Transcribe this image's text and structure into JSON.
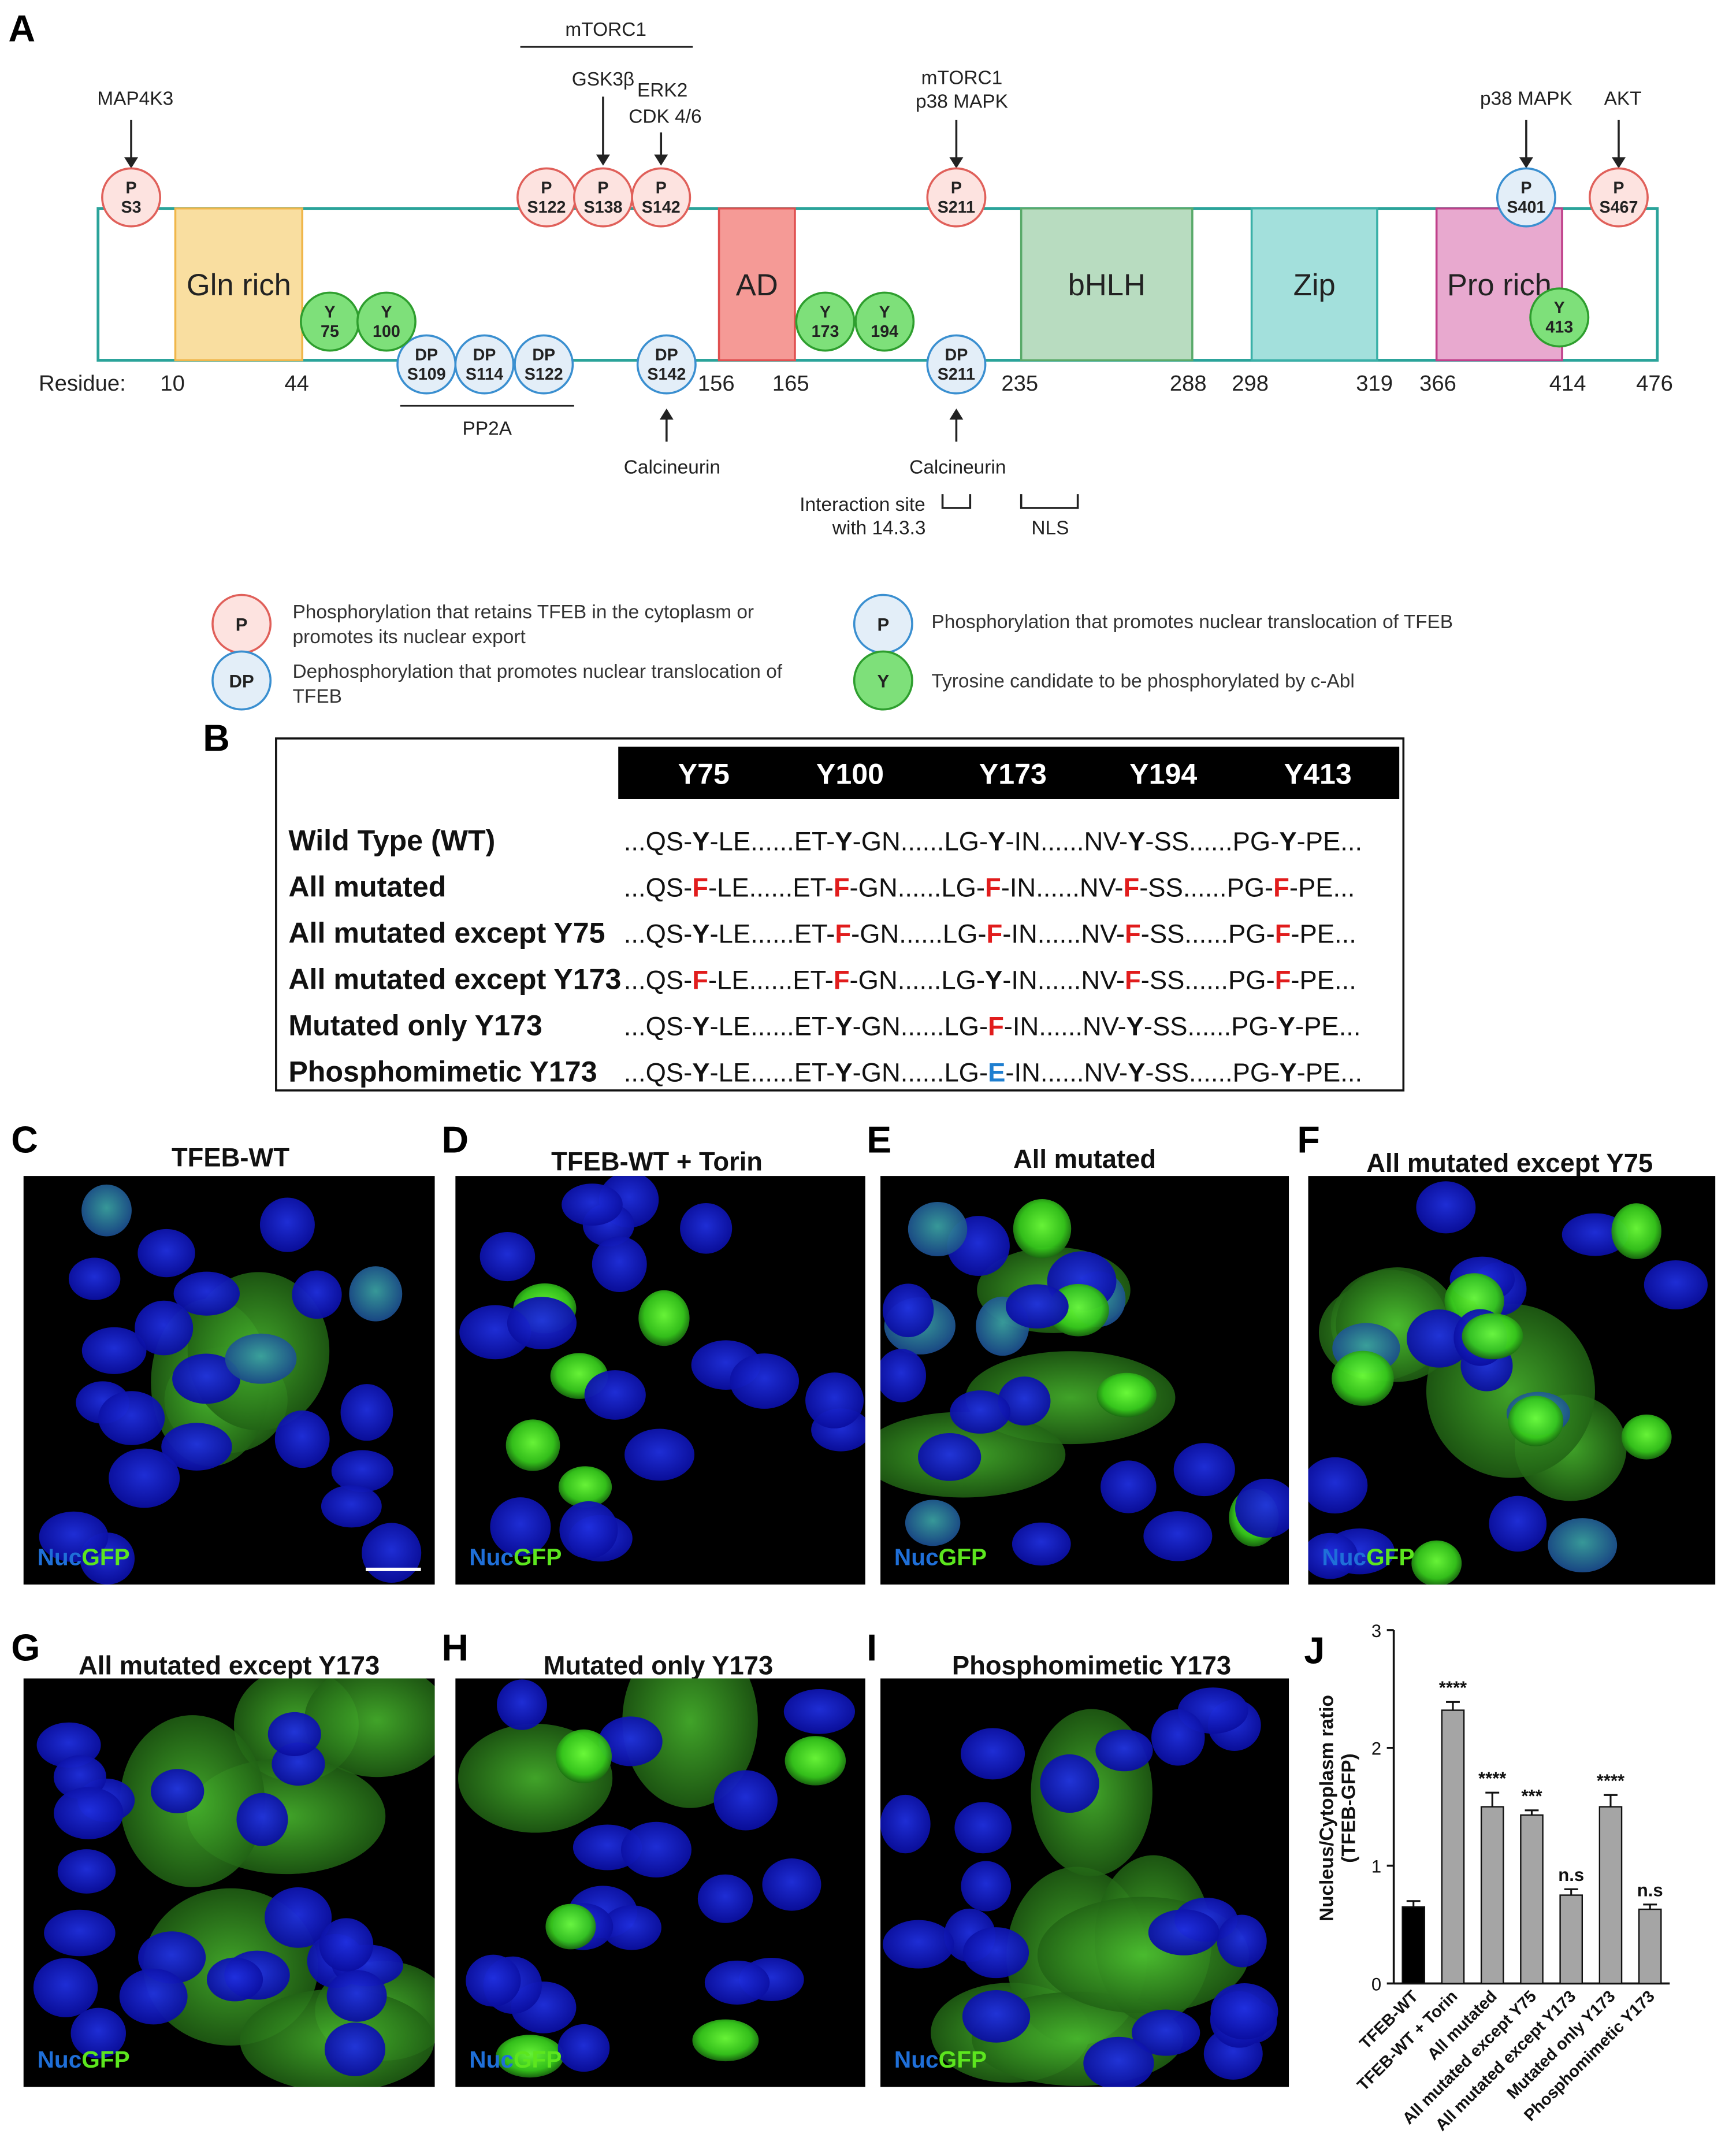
{
  "panels": {
    "A": "A",
    "B": "B",
    "C": "C",
    "D": "D",
    "E": "E",
    "F": "F",
    "G": "G",
    "H": "H",
    "I": "I",
    "J": "J"
  },
  "colors": {
    "backbone": "#2aa39a",
    "p_red_fill": "#fde3e0",
    "p_red_stroke": "#e0605a",
    "p_blue_fill": "#e3eef8",
    "p_blue_stroke": "#3a8fd0",
    "y_green_fill": "#7ee07a",
    "y_green_stroke": "#2e9e2e",
    "gln": "#f9dea0",
    "ad": "#f59a96",
    "bhlh": "#b8dcc0",
    "zip": "#a3e0dc",
    "pro": "#e8a9cf",
    "mutF": "#e11c1c",
    "mutE": "#1f7fd0",
    "nuc_blue": "#1f6fd8",
    "gfp_green": "#5ce61e"
  },
  "diagram": {
    "residue_label": "Residue:",
    "residues": [
      "10",
      "44",
      "156",
      "165",
      "235",
      "288",
      "298",
      "319",
      "366",
      "414",
      "476"
    ],
    "domains": [
      "Gln rich",
      "AD",
      "bHLH",
      "Zip",
      "Pro rich"
    ],
    "p_red": [
      {
        "top": "P",
        "bottom": "S3"
      },
      {
        "top": "P",
        "bottom": "S122"
      },
      {
        "top": "P",
        "bottom": "S138"
      },
      {
        "top": "P",
        "bottom": "S142"
      },
      {
        "top": "P",
        "bottom": "S211"
      },
      {
        "top": "P",
        "bottom": "S467"
      }
    ],
    "p_blue": [
      {
        "top": "P",
        "bottom": "S401"
      }
    ],
    "dp": [
      {
        "top": "DP",
        "bottom": "S109"
      },
      {
        "top": "DP",
        "bottom": "S114"
      },
      {
        "top": "DP",
        "bottom": "S122"
      },
      {
        "top": "DP",
        "bottom": "S142"
      },
      {
        "top": "DP",
        "bottom": "S211"
      }
    ],
    "tyr": [
      {
        "top": "Y",
        "bottom": "75"
      },
      {
        "top": "Y",
        "bottom": "100"
      },
      {
        "top": "Y",
        "bottom": "173"
      },
      {
        "top": "Y",
        "bottom": "194"
      },
      {
        "top": "Y",
        "bottom": "413"
      }
    ],
    "kinases": {
      "map4k3": "MAP4K3",
      "mtorc1_top": "mTORC1",
      "gsk3b": "GSK3β",
      "erk2": "ERK2",
      "cdk": "CDK 4/6",
      "mtorc1_2": "mTORC1",
      "p38_1": "p38 MAPK",
      "p38_2": "p38 MAPK",
      "akt": "AKT"
    },
    "pp2a": "PP2A",
    "calcineurin_1": "Calcineurin",
    "calcineurin_2": "Calcineurin",
    "interaction_1": "Interaction site",
    "interaction_2": "with 14.3.3",
    "nls": "NLS"
  },
  "legend": {
    "p_red_symbol": "P",
    "p_red_text_1": "Phosphorylation that retains TFEB in the cytoplasm or",
    "p_red_text_2": "promotes its nuclear export",
    "dp_symbol": "DP",
    "dp_text_1": "Dephosphorylation that promotes nuclear translocation of",
    "dp_text_2": "TFEB",
    "p_blue_symbol": "P",
    "p_blue_text": "Phosphorylation that promotes nuclear translocation of TFEB",
    "y_symbol": "Y",
    "y_text": "Tyrosine candidate to be phosphorylated by c-Abl"
  },
  "table": {
    "headers": [
      "Y75",
      "Y100",
      "Y173",
      "Y194",
      "Y413"
    ],
    "rows": [
      {
        "label": "Wild Type (WT)",
        "seq": [
          [
            "...QS-",
            ""
          ],
          [
            "Y",
            "b"
          ],
          [
            "-LE......ET-",
            ""
          ],
          [
            "Y",
            "b"
          ],
          [
            "-GN......LG-",
            ""
          ],
          [
            "Y",
            "b"
          ],
          [
            "-IN......NV-",
            ""
          ],
          [
            "Y",
            "b"
          ],
          [
            "-SS......PG-",
            ""
          ],
          [
            "Y",
            "b"
          ],
          [
            "-PE...",
            ""
          ]
        ]
      },
      {
        "label": "All mutated",
        "seq": [
          [
            "...QS-",
            ""
          ],
          [
            "F",
            "r"
          ],
          [
            "-LE......ET-",
            ""
          ],
          [
            "F",
            "r"
          ],
          [
            "-GN......LG-",
            ""
          ],
          [
            "F",
            "r"
          ],
          [
            "-IN......NV-",
            ""
          ],
          [
            "F",
            "r"
          ],
          [
            "-SS......PG-",
            ""
          ],
          [
            "F",
            "r"
          ],
          [
            "-PE...",
            ""
          ]
        ]
      },
      {
        "label": "All mutated except Y75",
        "seq": [
          [
            "...QS-",
            ""
          ],
          [
            "Y",
            "b"
          ],
          [
            "-LE......ET-",
            ""
          ],
          [
            "F",
            "r"
          ],
          [
            "-GN......LG-",
            ""
          ],
          [
            "F",
            "r"
          ],
          [
            "-IN......NV-",
            ""
          ],
          [
            "F",
            "r"
          ],
          [
            "-SS......PG-",
            ""
          ],
          [
            "F",
            "r"
          ],
          [
            "-PE...",
            ""
          ]
        ]
      },
      {
        "label": "All mutated except Y173",
        "seq": [
          [
            "...QS-",
            ""
          ],
          [
            "F",
            "r"
          ],
          [
            "-LE......ET-",
            ""
          ],
          [
            "F",
            "r"
          ],
          [
            "-GN......LG-",
            ""
          ],
          [
            "Y",
            "b"
          ],
          [
            "-IN......NV-",
            ""
          ],
          [
            "F",
            "r"
          ],
          [
            "-SS......PG-",
            ""
          ],
          [
            "F",
            "r"
          ],
          [
            "-PE...",
            ""
          ]
        ]
      },
      {
        "label": "Mutated only Y173",
        "seq": [
          [
            "...QS-",
            ""
          ],
          [
            "Y",
            "b"
          ],
          [
            "-LE......ET-",
            ""
          ],
          [
            "Y",
            "b"
          ],
          [
            "-GN......LG-",
            ""
          ],
          [
            "F",
            "r"
          ],
          [
            "-IN......NV-",
            ""
          ],
          [
            "Y",
            "b"
          ],
          [
            "-SS......PG-",
            ""
          ],
          [
            "Y",
            "b"
          ],
          [
            "-PE...",
            ""
          ]
        ]
      },
      {
        "label": "Phosphomimetic Y173",
        "seq": [
          [
            "...QS-",
            ""
          ],
          [
            "Y",
            "b"
          ],
          [
            "-LE......ET-",
            ""
          ],
          [
            "Y",
            "b"
          ],
          [
            "-GN......LG-",
            ""
          ],
          [
            "E",
            "e"
          ],
          [
            "-IN......NV-",
            ""
          ],
          [
            "Y",
            "b"
          ],
          [
            "-SS......PG-",
            ""
          ],
          [
            "Y",
            "b"
          ],
          [
            "-PE...",
            ""
          ]
        ]
      }
    ]
  },
  "micrographs": {
    "C": "TFEB-WT",
    "D": "TFEB-WT + Torin",
    "E": "All mutated",
    "F": "All mutated except Y75",
    "G": "All mutated except Y173",
    "H": "Mutated only Y173",
    "I": "Phosphomimetic Y173",
    "nuc": "Nuc",
    "gfp": "GFP"
  },
  "chart_data": {
    "type": "bar",
    "categories": [
      "TFEB-WT",
      "TFEB-WT + Torin",
      "All mutated",
      "All mutated except Y75",
      "All mutated except Y173",
      "Mutated only Y173",
      "Phosphomimetic Y173"
    ],
    "values": [
      0.65,
      2.32,
      1.5,
      1.43,
      0.75,
      1.5,
      0.63
    ],
    "errors": [
      0.05,
      0.07,
      0.12,
      0.04,
      0.05,
      0.1,
      0.04
    ],
    "significance": [
      "",
      "****",
      "****",
      "***",
      "n.s",
      "****",
      "n.s"
    ],
    "colors": [
      "#000000",
      "#a5a5a5",
      "#a5a5a5",
      "#a5a5a5",
      "#a5a5a5",
      "#a5a5a5",
      "#a5a5a5"
    ],
    "ylabel_1": "Nucleus/Cytoplasm ratio",
    "ylabel_2": "(TFEB-GFP)",
    "ylim": [
      0,
      3
    ],
    "yticks": [
      "0",
      "1",
      "2",
      "3"
    ]
  }
}
